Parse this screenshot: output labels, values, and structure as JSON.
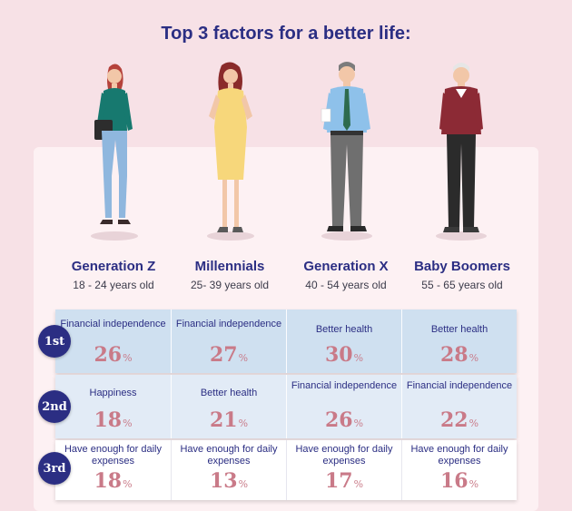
{
  "title": "Top 3 factors for a better life:",
  "generations": [
    {
      "name": "Generation Z",
      "age": "18 - 24 years old",
      "icon": "woman-with-bag-icon"
    },
    {
      "name": "Millennials",
      "age": "25- 39 years old",
      "icon": "woman-yellow-dress-icon"
    },
    {
      "name": "Generation X",
      "age": "40 - 54 years old",
      "icon": "man-with-tie-icon"
    },
    {
      "name": "Baby Boomers",
      "age": "55 - 65 years old",
      "icon": "older-man-icon"
    }
  ],
  "ranks": [
    "1st",
    "2nd",
    "3rd"
  ],
  "table": [
    [
      {
        "factor": "Financial independence",
        "percent": "26",
        "unit": "%"
      },
      {
        "factor": "Financial independence",
        "percent": "27",
        "unit": "%"
      },
      {
        "factor": "Better health",
        "percent": "30",
        "unit": "%"
      },
      {
        "factor": "Better health",
        "percent": "28",
        "unit": "%"
      }
    ],
    [
      {
        "factor": "Happiness",
        "percent": "18",
        "unit": "%"
      },
      {
        "factor": "Better health",
        "percent": "21",
        "unit": "%"
      },
      {
        "factor": "Financial independence",
        "percent": "26",
        "unit": "%"
      },
      {
        "factor": "Financial independence",
        "percent": "22",
        "unit": "%"
      }
    ],
    [
      {
        "factor": "Have enough for daily expenses",
        "percent": "18",
        "unit": "%"
      },
      {
        "factor": "Have enough for daily expenses",
        "percent": "13",
        "unit": "%"
      },
      {
        "factor": "Have enough for daily expenses",
        "percent": "17",
        "unit": "%"
      },
      {
        "factor": "Have enough for daily expenses",
        "percent": "16",
        "unit": "%"
      }
    ]
  ],
  "colors": {
    "background": "#f7e1e6",
    "panel": "#fdf1f3",
    "navy": "#2b2e83",
    "percent": "#c97a88",
    "row1": "#cfe0f0",
    "row2": "#e2ebf6",
    "row3": "#ffffff"
  }
}
